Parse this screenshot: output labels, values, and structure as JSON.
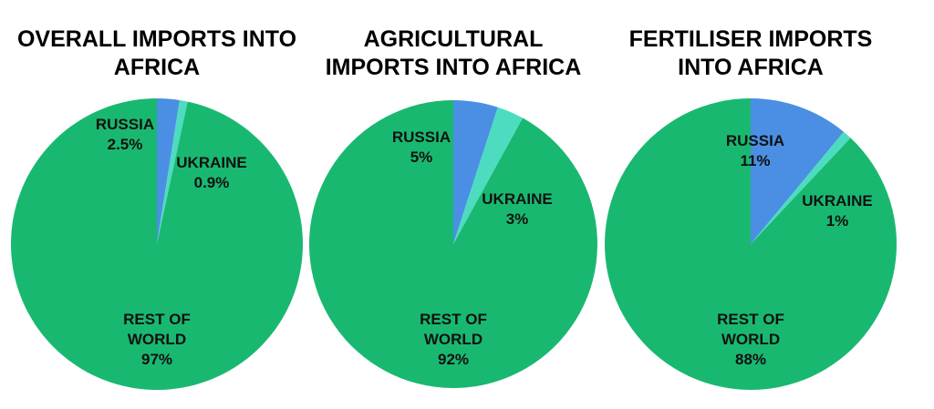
{
  "chart_data": [
    {
      "type": "pie",
      "title": "OVERALL IMPORTS INTO AFRICA",
      "categories": [
        "RUSSIA",
        "UKRAINE",
        "REST OF WORLD"
      ],
      "values": [
        2.5,
        0.9,
        97
      ],
      "value_labels": [
        "2.5%",
        "0.9%",
        "97%"
      ],
      "colors": [
        "#4a8fe3",
        "#4ddcc0",
        "#19b870"
      ]
    },
    {
      "type": "pie",
      "title": "AGRICULTURAL IMPORTS INTO AFRICA",
      "categories": [
        "RUSSIA",
        "UKRAINE",
        "REST OF WORLD"
      ],
      "values": [
        5,
        3,
        92
      ],
      "value_labels": [
        "5%",
        "3%",
        "92%"
      ],
      "colors": [
        "#4a8fe3",
        "#4ddcc0",
        "#19b870"
      ]
    },
    {
      "type": "pie",
      "title": "FERTILISER IMPORTS INTO AFRICA",
      "categories": [
        "RUSSIA",
        "UKRAINE",
        "REST OF WORLD"
      ],
      "values": [
        11,
        1,
        88
      ],
      "value_labels": [
        "11%",
        "1%",
        "88%"
      ],
      "colors": [
        "#4a8fe3",
        "#4ddcc0",
        "#19b870"
      ]
    }
  ]
}
